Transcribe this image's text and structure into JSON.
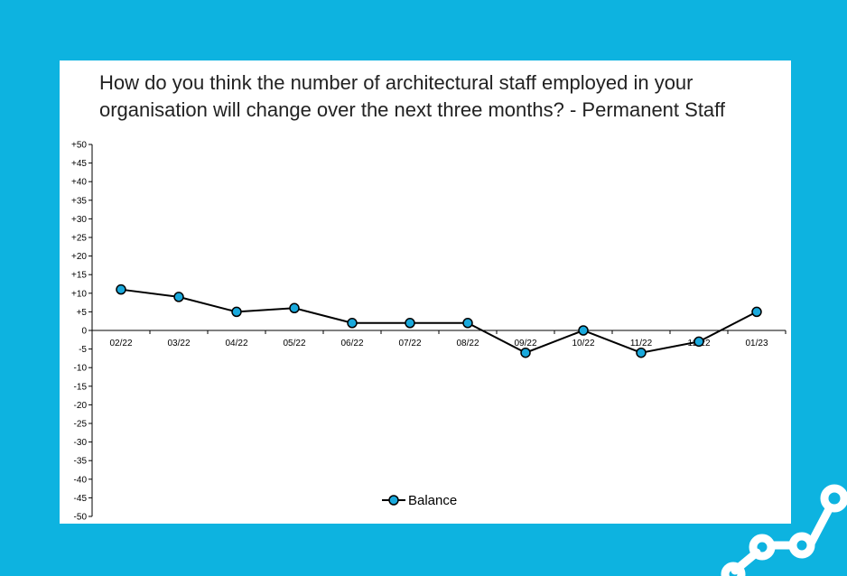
{
  "colors": {
    "background": "#0db3e0",
    "card": "#ffffff",
    "marker_fill": "#1aa9dc",
    "line": "#000000"
  },
  "brand_icon": "connected-nodes-logo",
  "chart_data": {
    "type": "line",
    "title_lines": [
      "How do you think the number of architectural staff employed in your",
      "organisation will change over the next three months? - Permanent Staff"
    ],
    "categories": [
      "02/22",
      "03/22",
      "04/22",
      "05/22",
      "06/22",
      "07/22",
      "08/22",
      "09/22",
      "10/22",
      "11/22",
      "12/22",
      "01/23"
    ],
    "series": [
      {
        "name": "Balance",
        "values": [
          11,
          9,
          5,
          6,
          2,
          2,
          2,
          -6,
          0,
          -6,
          -3,
          5
        ]
      }
    ],
    "ylim": [
      -50,
      50
    ],
    "y_ticks": [
      "+50",
      "+45",
      "+40",
      "+35",
      "+30",
      "+25",
      "+20",
      "+15",
      "+10",
      "+5",
      "0",
      "-5",
      "-10",
      "-15",
      "-20",
      "-25",
      "-30",
      "-35",
      "-40",
      "-45",
      "-50"
    ],
    "xlabel": "",
    "ylabel": "",
    "grid": false,
    "legend_position": "bottom-center"
  }
}
